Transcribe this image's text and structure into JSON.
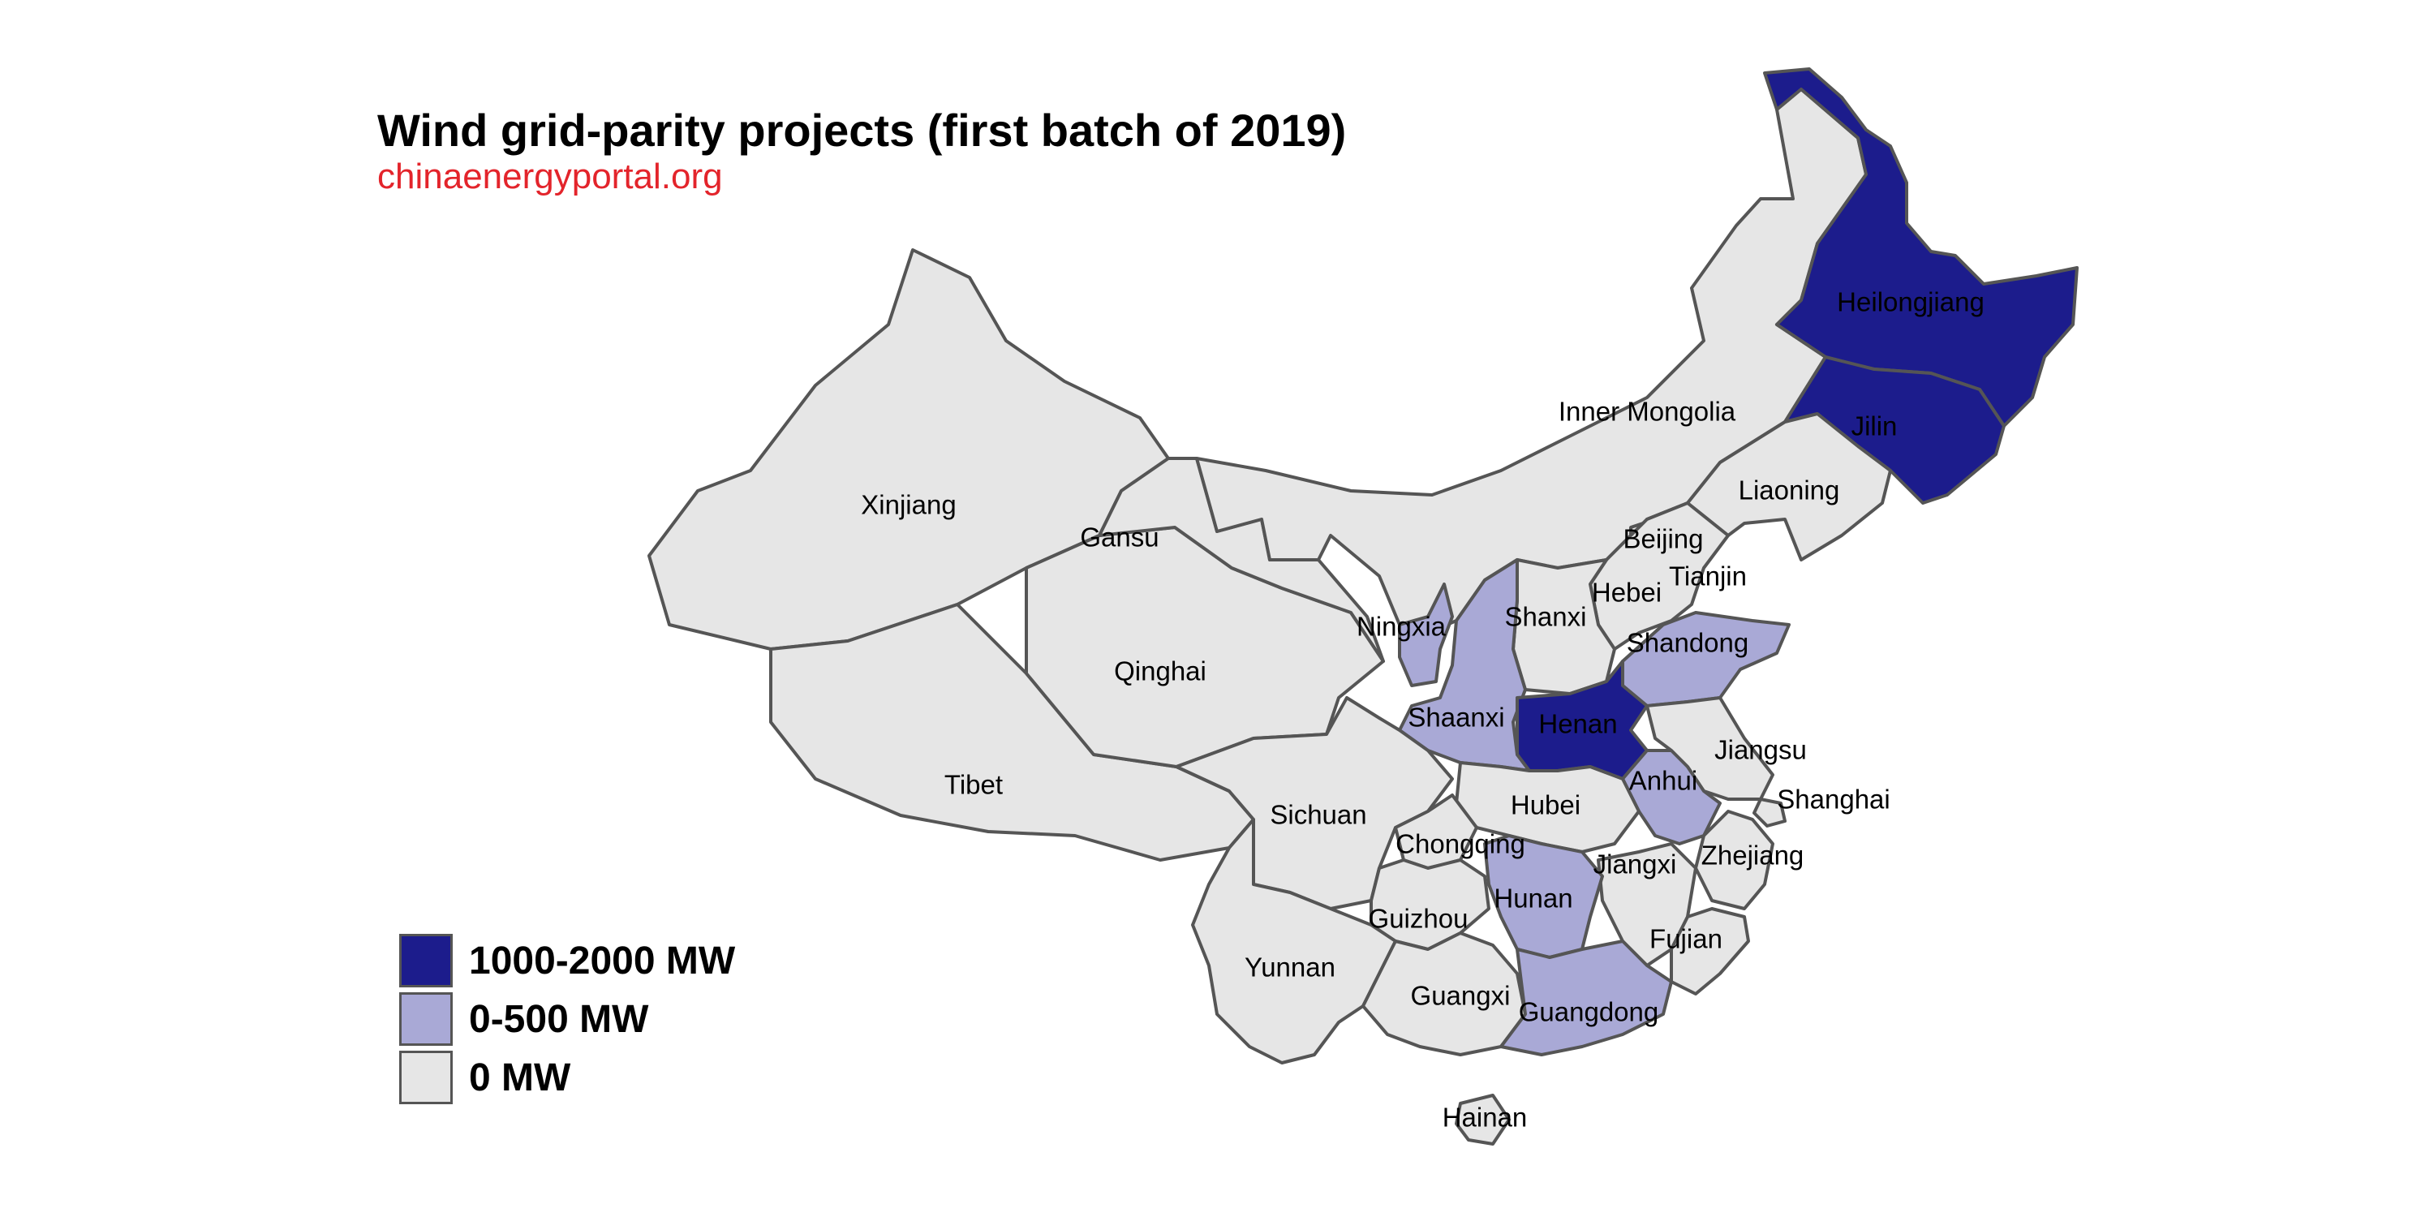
{
  "title": "Wind grid-parity projects (first batch of 2019)",
  "subtitle": "chinaenergyportal.org",
  "colors": {
    "high": "#1c1c8c",
    "low": "#a9a9d6",
    "none": "#e6e6e6",
    "border": "#555555",
    "subtitle": "#e3242b"
  },
  "legend": [
    {
      "label": "1000-2000 MW",
      "category": "high"
    },
    {
      "label": "0-500 MW",
      "category": "low"
    },
    {
      "label": "0 MW",
      "category": "none"
    }
  ],
  "provinces": [
    {
      "name": "Xinjiang",
      "category": "none"
    },
    {
      "name": "Tibet",
      "category": "none"
    },
    {
      "name": "Qinghai",
      "category": "none"
    },
    {
      "name": "Gansu",
      "category": "none"
    },
    {
      "name": "Inner Mongolia",
      "category": "none"
    },
    {
      "name": "Heilongjiang",
      "category": "high"
    },
    {
      "name": "Jilin",
      "category": "high"
    },
    {
      "name": "Liaoning",
      "category": "none"
    },
    {
      "name": "Beijing",
      "category": "none"
    },
    {
      "name": "Tianjin",
      "category": "low"
    },
    {
      "name": "Hebei",
      "category": "none"
    },
    {
      "name": "Shanxi",
      "category": "none"
    },
    {
      "name": "Ningxia",
      "category": "low"
    },
    {
      "name": "Shaanxi",
      "category": "low"
    },
    {
      "name": "Shandong",
      "category": "low"
    },
    {
      "name": "Henan",
      "category": "high"
    },
    {
      "name": "Jiangsu",
      "category": "none"
    },
    {
      "name": "Anhui",
      "category": "low"
    },
    {
      "name": "Shanghai",
      "category": "none"
    },
    {
      "name": "Hubei",
      "category": "none"
    },
    {
      "name": "Sichuan",
      "category": "none"
    },
    {
      "name": "Chongqing",
      "category": "none"
    },
    {
      "name": "Zhejiang",
      "category": "none"
    },
    {
      "name": "Jiangxi",
      "category": "none"
    },
    {
      "name": "Hunan",
      "category": "low"
    },
    {
      "name": "Guizhou",
      "category": "none"
    },
    {
      "name": "Fujian",
      "category": "none"
    },
    {
      "name": "Yunnan",
      "category": "none"
    },
    {
      "name": "Guangxi",
      "category": "none"
    },
    {
      "name": "Guangdong",
      "category": "low"
    },
    {
      "name": "Hainan",
      "category": "none"
    }
  ]
}
